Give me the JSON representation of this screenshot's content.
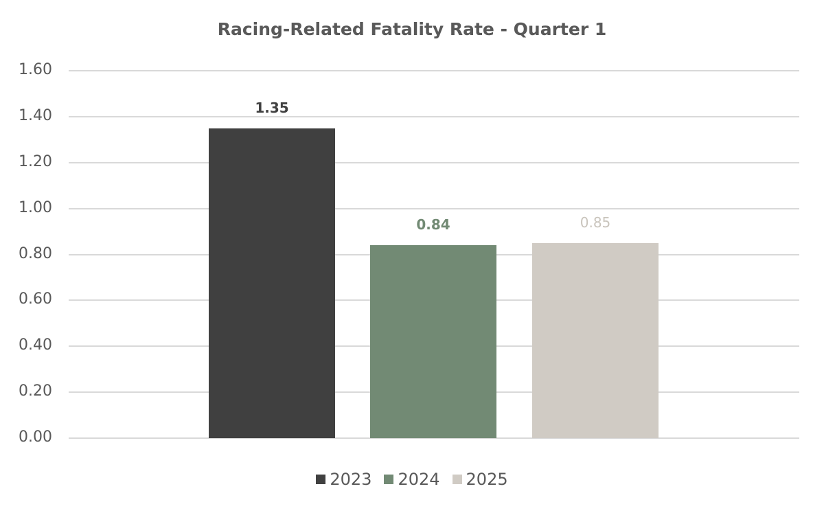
{
  "chart_data": {
    "type": "bar",
    "title": "Racing-Related Fatality Rate - Quarter 1",
    "xlabel": "",
    "ylabel": "",
    "categories": [
      "Quarter 1"
    ],
    "series": [
      {
        "name": "2023",
        "values": [
          1.35
        ],
        "color": "#404040",
        "label": "1.35",
        "label_color": "#404040"
      },
      {
        "name": "2024",
        "values": [
          0.84
        ],
        "color": "#728a74",
        "label": "0.84",
        "label_color": "#728a74"
      },
      {
        "name": "2025",
        "values": [
          0.85
        ],
        "color": "#d0cbc4",
        "label": "0.85",
        "label_color": "#c9c4bc"
      }
    ],
    "ylim": [
      0,
      1.6
    ],
    "yticks": [
      "0.00",
      "0.20",
      "0.40",
      "0.60",
      "0.80",
      "1.00",
      "1.20",
      "1.40",
      "1.60"
    ],
    "grid": true,
    "legend_position": "bottom"
  }
}
